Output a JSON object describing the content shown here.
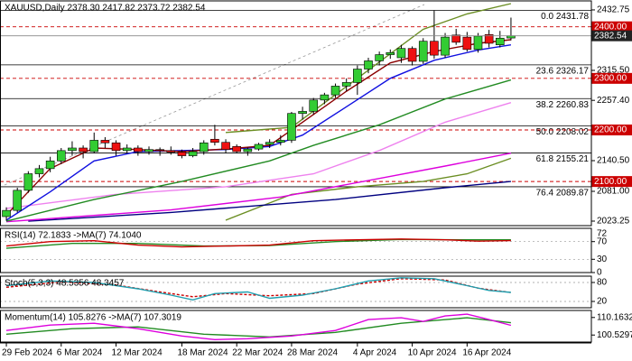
{
  "chart_data": [
    {
      "type": "candlestick",
      "title": "XAUUSD,Daily 2378.30 2417.82 2373.72 2382.54",
      "categories": [
        "29 Feb 2024",
        null,
        null,
        null,
        null,
        "6 Mar 2024",
        null,
        null,
        null,
        null,
        "12 Mar 2024",
        null,
        null,
        null,
        null,
        null,
        "18 Mar 2024",
        null,
        null,
        null,
        null,
        "22 Mar 2024",
        null,
        null,
        null,
        null,
        "28 Mar 2024",
        null,
        null,
        null,
        null,
        null,
        "4 Apr 2024",
        null,
        null,
        null,
        null,
        "10 Apr 2024",
        null,
        null,
        null,
        null,
        "16 Apr 2024",
        null,
        null,
        null,
        null
      ],
      "open": [
        2032,
        2044,
        2083,
        2115,
        2125,
        2140,
        2160,
        2165,
        2158,
        2180,
        2175,
        2160,
        2165,
        2158,
        2162,
        2160,
        2157,
        2150,
        2158,
        2182,
        2176,
        2168,
        2158,
        2163,
        2172,
        2176,
        2180,
        2232,
        2236,
        2258,
        2268,
        2285,
        2292,
        2318,
        2334,
        2346,
        2340,
        2358,
        2333,
        2372,
        2345,
        2384,
        2380,
        2356,
        2385,
        2365,
        2378.3
      ],
      "high": [
        2050,
        2088,
        2120,
        2132,
        2148,
        2165,
        2178,
        2170,
        2195,
        2186,
        2180,
        2172,
        2170,
        2168,
        2166,
        2168,
        2162,
        2165,
        2180,
        2210,
        2182,
        2172,
        2166,
        2175,
        2182,
        2190,
        2235,
        2245,
        2262,
        2272,
        2290,
        2300,
        2325,
        2340,
        2352,
        2356,
        2365,
        2362,
        2378,
        2431.78,
        2388,
        2396,
        2390,
        2388,
        2394,
        2392,
        2417.82
      ],
      "low": [
        2024,
        2040,
        2078,
        2108,
        2118,
        2134,
        2150,
        2145,
        2155,
        2165,
        2150,
        2155,
        2150,
        2152,
        2150,
        2152,
        2145,
        2147,
        2152,
        2170,
        2155,
        2155,
        2150,
        2160,
        2165,
        2170,
        2175,
        2220,
        2230,
        2250,
        2262,
        2275,
        2268,
        2310,
        2325,
        2338,
        2330,
        2325,
        2328,
        2338,
        2340,
        2365,
        2352,
        2350,
        2360,
        2360,
        2373.72
      ],
      "close": [
        2044,
        2083,
        2115,
        2125,
        2140,
        2160,
        2165,
        2158,
        2180,
        2175,
        2160,
        2165,
        2158,
        2162,
        2160,
        2157,
        2150,
        2158,
        2175,
        2176,
        2162,
        2158,
        2163,
        2172,
        2176,
        2180,
        2232,
        2236,
        2258,
        2268,
        2285,
        2292,
        2318,
        2334,
        2346,
        2350,
        2358,
        2333,
        2372,
        2345,
        2380,
        2370,
        2356,
        2382,
        2368,
        2378,
        2382.54
      ],
      "up_color": "#33cc33",
      "down_color": "#ee1111",
      "xlim": [
        -0.58,
        53.33
      ],
      "ylim": [
        2014.5,
        2450.2
      ],
      "yticks": [
        2432.75,
        {
          "value": 2315.5,
          "label": "2315.50"
        },
        {
          "value": 2257.4,
          "label": "2257.40"
        },
        {
          "value": 2140.5,
          "label": "2140.50"
        },
        {
          "value": 2081,
          "label": "2081.00"
        },
        2023.25
      ],
      "levels": [
        {
          "value": 2400,
          "label": "2400.00"
        },
        {
          "value": 2300,
          "label": "2300.00"
        },
        {
          "value": 2200,
          "label": "2200.00"
        },
        {
          "value": 2100,
          "label": "2100.00"
        }
      ],
      "level_color": "#cc0000",
      "fib_levels": [
        {
          "value": 2431.78,
          "label": "0.0 2431.78"
        },
        {
          "value": 2326.17,
          "label": "23.6 2326.17"
        },
        {
          "value": 2260.83,
          "label": "38.2 2260.83"
        },
        {
          "value": 2208.02,
          "label": "50.0 2208.02"
        },
        {
          "value": 2155.21,
          "label": "61.8 2155.21"
        },
        {
          "value": 2089.87,
          "label": "76.4 2089.87"
        }
      ],
      "last_price": {
        "value": 2382.54,
        "label": "2382.54"
      },
      "series": [
        {
          "color": "#6b8e23",
          "x": [
            20,
            26,
            32,
            38,
            42,
            46
          ],
          "values": [
            2195,
            2205,
            2300,
            2395,
            2425,
            2445
          ]
        },
        {
          "color": "#6b8e23",
          "x": [
            20,
            26,
            32,
            38,
            42,
            46
          ],
          "values": [
            2025,
            2075,
            2090,
            2100,
            2115,
            2145
          ]
        },
        {
          "color": "#000080",
          "x": [
            2,
            15,
            30,
            40,
            46
          ],
          "values": [
            2023,
            2040,
            2065,
            2088,
            2100
          ]
        },
        {
          "color": "#dd00dd",
          "x": [
            0,
            15,
            25,
            35,
            40,
            46
          ],
          "values": [
            2022,
            2045,
            2070,
            2110,
            2130,
            2155
          ]
        },
        {
          "color": "#ee82ee",
          "x": [
            0,
            10,
            20,
            28,
            34,
            40,
            46
          ],
          "values": [
            2048,
            2075,
            2090,
            2115,
            2160,
            2215,
            2253
          ]
        },
        {
          "color": "#228b22",
          "x": [
            0,
            8,
            16,
            24,
            28,
            34,
            40,
            46
          ],
          "values": [
            2023,
            2065,
            2100,
            2140,
            2170,
            2210,
            2260,
            2297
          ]
        },
        {
          "color": "#1010e0",
          "x": [
            0,
            4,
            8,
            12,
            16,
            20,
            24,
            27,
            31,
            35,
            39,
            43,
            46
          ],
          "values": [
            2025,
            2080,
            2140,
            2158,
            2160,
            2162,
            2168,
            2190,
            2245,
            2300,
            2335,
            2355,
            2365
          ]
        },
        {
          "color": "#8b0000",
          "x": [
            0,
            4,
            8,
            12,
            16,
            20,
            24,
            27,
            31,
            35,
            39,
            43,
            46
          ],
          "values": [
            2035,
            2125,
            2165,
            2162,
            2158,
            2163,
            2170,
            2215,
            2275,
            2330,
            2352,
            2368,
            2375
          ]
        }
      ]
    },
    {
      "type": "line",
      "title": "RSI(14) 72.1833 ->MA(7) 74.1040",
      "xlim": [
        -0.58,
        53.33
      ],
      "ylim": [
        0,
        100
      ],
      "yticks": [
        70,
        30,
        0
      ],
      "grid": true,
      "marker": {
        "value": 72.1833,
        "label": "72"
      },
      "series": [
        {
          "color": "#228b22",
          "x": [
            0,
            6,
            12,
            18,
            24,
            30,
            36,
            42,
            46
          ],
          "values": [
            55,
            66,
            66,
            60,
            61,
            70,
            75,
            74,
            74.104
          ]
        },
        {
          "color": "#cc0000",
          "x": [
            0,
            4,
            8,
            12,
            16,
            20,
            24,
            28,
            32,
            36,
            40,
            43,
            46
          ],
          "values": [
            60,
            70,
            72,
            62,
            58,
            60,
            62,
            72,
            74,
            76,
            74,
            71,
            72.1833
          ]
        }
      ]
    },
    {
      "type": "line",
      "title": "Stoch(5,3,3) 48.5356 48.3457",
      "xlim": [
        -0.58,
        53.33
      ],
      "ylim": [
        0,
        100
      ],
      "yticks": [
        80,
        20
      ],
      "grid": true,
      "series": [
        {
          "color": "#cc0000",
          "dash": true,
          "x": [
            0,
            5,
            10,
            14,
            17,
            20,
            24,
            28,
            32,
            36,
            40,
            43,
            46
          ],
          "values": [
            65,
            82,
            72,
            50,
            35,
            45,
            38,
            45,
            75,
            92,
            88,
            62,
            48.3457
          ]
        },
        {
          "color": "#20a0b0",
          "x": [
            0,
            4,
            8,
            12,
            15,
            17,
            19,
            22,
            24,
            27,
            30,
            33,
            36,
            39,
            42,
            44,
            46
          ],
          "values": [
            70,
            85,
            80,
            60,
            40,
            25,
            45,
            50,
            30,
            40,
            60,
            85,
            95,
            92,
            70,
            55,
            48.5356
          ]
        }
      ]
    },
    {
      "type": "line",
      "title": "Momentum(14) 105.8276 ->MA(7) 107.3019",
      "xlim": [
        -0.58,
        53.33
      ],
      "ylim": [
        96.68,
        114.02
      ],
      "yticks": [
        110.1632,
        100.5297
      ],
      "grid": false,
      "series": [
        {
          "color": "#228b22",
          "x": [
            0,
            6,
            12,
            18,
            24,
            30,
            36,
            42,
            46
          ],
          "values": [
            101,
            104,
            105,
            101,
            99.5,
            102,
            107,
            110,
            107.3019
          ]
        },
        {
          "color": "#dd00dd",
          "x": [
            0,
            4,
            8,
            12,
            16,
            19,
            22,
            26,
            30,
            33,
            36,
            38,
            40,
            42,
            44,
            46
          ],
          "values": [
            103,
            106,
            107,
            104,
            100,
            98,
            98.5,
            100,
            103,
            109,
            110,
            108,
            111,
            112,
            109,
            105.8276
          ]
        }
      ]
    }
  ]
}
